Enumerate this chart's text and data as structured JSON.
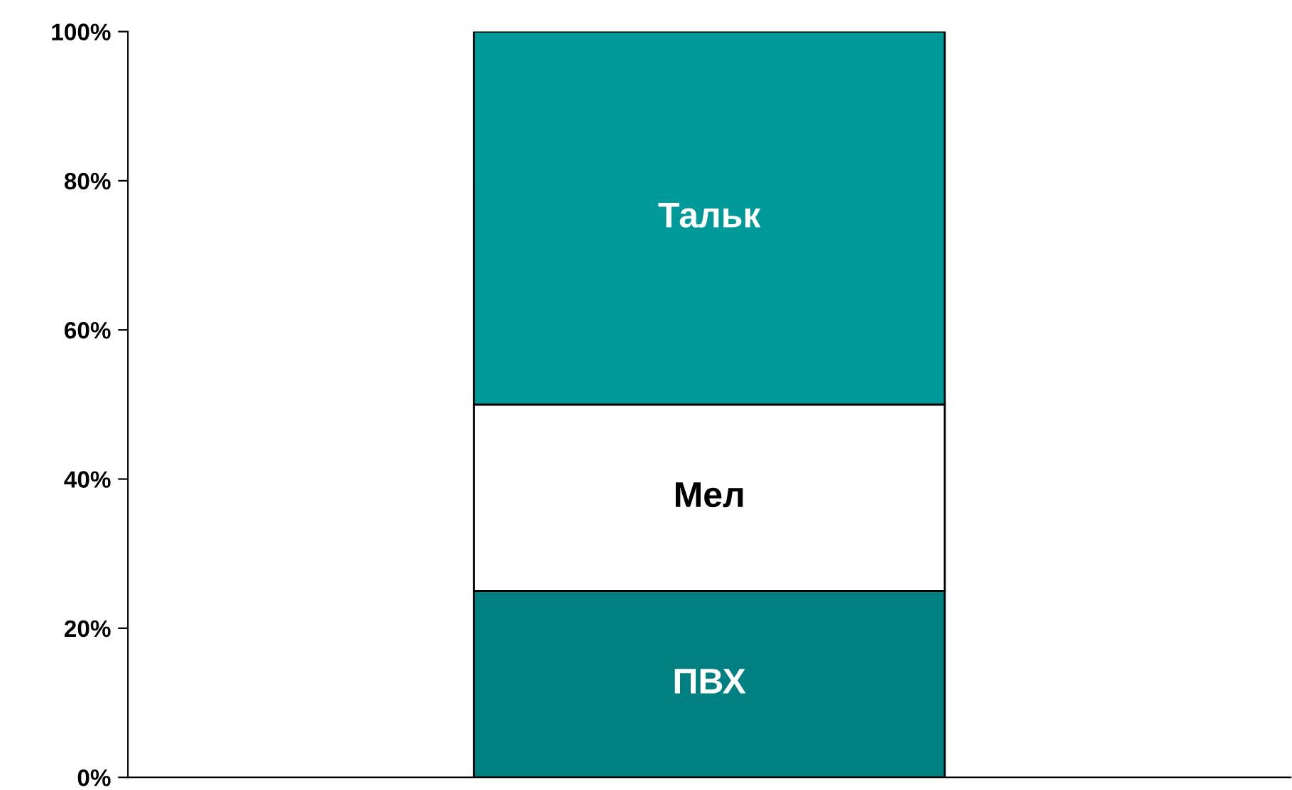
{
  "chart_data": {
    "type": "bar",
    "stacked": true,
    "categories": [
      null
    ],
    "series": [
      {
        "name": "ПВХ",
        "color": "#008080",
        "values": [
          25
        ]
      },
      {
        "name": "Мел",
        "color": "#ffffff",
        "values": [
          25
        ]
      },
      {
        "name": "Тальк",
        "color": "#009999",
        "values": [
          50
        ]
      }
    ],
    "ylim": [
      0,
      100
    ],
    "yticks": [
      {
        "value": 0,
        "label": "0%"
      },
      {
        "value": 20,
        "label": "20%"
      },
      {
        "value": 40,
        "label": "40%"
      },
      {
        "value": 60,
        "label": "60%"
      },
      {
        "value": 80,
        "label": "80%"
      },
      {
        "value": 100,
        "label": "100%"
      }
    ],
    "grid": false,
    "legend": false
  }
}
